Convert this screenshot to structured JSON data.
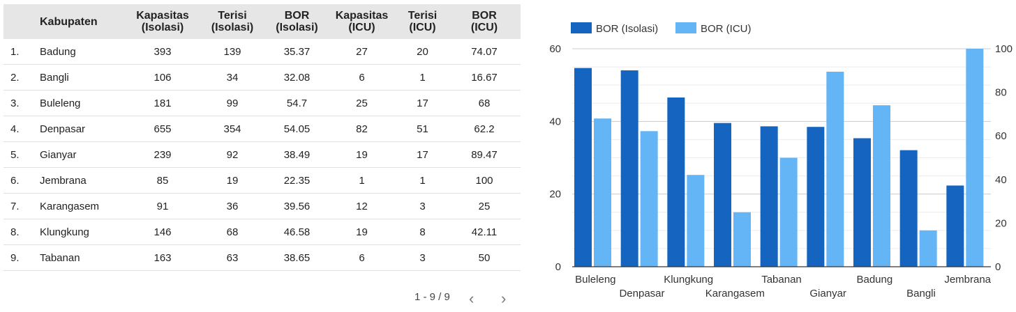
{
  "table": {
    "headers": {
      "idx": "",
      "kabupaten": "Kabupaten",
      "kap_iso": [
        "Kapasitas",
        "(Isolasi)"
      ],
      "ter_iso": [
        "Terisi",
        "(Isolasi)"
      ],
      "bor_iso": [
        "BOR",
        "(Isolasi)"
      ],
      "kap_icu": [
        "Kapasitas",
        "(ICU)"
      ],
      "ter_icu": [
        "Terisi",
        "(ICU)"
      ],
      "bor_icu": [
        "BOR",
        "(ICU)"
      ]
    },
    "rows": [
      {
        "idx": "1.",
        "kab": "Badung",
        "kap_iso": "393",
        "ter_iso": "139",
        "bor_iso": "35.37",
        "kap_icu": "27",
        "ter_icu": "20",
        "bor_icu": "74.07"
      },
      {
        "idx": "2.",
        "kab": "Bangli",
        "kap_iso": "106",
        "ter_iso": "34",
        "bor_iso": "32.08",
        "kap_icu": "6",
        "ter_icu": "1",
        "bor_icu": "16.67"
      },
      {
        "idx": "3.",
        "kab": "Buleleng",
        "kap_iso": "181",
        "ter_iso": "99",
        "bor_iso": "54.7",
        "kap_icu": "25",
        "ter_icu": "17",
        "bor_icu": "68"
      },
      {
        "idx": "4.",
        "kab": "Denpasar",
        "kap_iso": "655",
        "ter_iso": "354",
        "bor_iso": "54.05",
        "kap_icu": "82",
        "ter_icu": "51",
        "bor_icu": "62.2"
      },
      {
        "idx": "5.",
        "kab": "Gianyar",
        "kap_iso": "239",
        "ter_iso": "92",
        "bor_iso": "38.49",
        "kap_icu": "19",
        "ter_icu": "17",
        "bor_icu": "89.47"
      },
      {
        "idx": "6.",
        "kab": "Jembrana",
        "kap_iso": "85",
        "ter_iso": "19",
        "bor_iso": "22.35",
        "kap_icu": "1",
        "ter_icu": "1",
        "bor_icu": "100"
      },
      {
        "idx": "7.",
        "kab": "Karangasem",
        "kap_iso": "91",
        "ter_iso": "36",
        "bor_iso": "39.56",
        "kap_icu": "12",
        "ter_icu": "3",
        "bor_icu": "25"
      },
      {
        "idx": "8.",
        "kab": "Klungkung",
        "kap_iso": "146",
        "ter_iso": "68",
        "bor_iso": "46.58",
        "kap_icu": "19",
        "ter_icu": "8",
        "bor_icu": "42.11"
      },
      {
        "idx": "9.",
        "kab": "Tabanan",
        "kap_iso": "163",
        "ter_iso": "63",
        "bor_iso": "38.65",
        "kap_icu": "6",
        "ter_icu": "3",
        "bor_icu": "50"
      }
    ]
  },
  "pagination": {
    "label": "1 - 9 / 9",
    "prev": "‹",
    "next": "›"
  },
  "chart_data": {
    "type": "bar",
    "categories": [
      "Buleleng",
      "Denpasar",
      "Klungkung",
      "Karangasem",
      "Tabanan",
      "Gianyar",
      "Badung",
      "Bangli",
      "Jembrana"
    ],
    "series": [
      {
        "name": "BOR (Isolasi)",
        "axis": "left",
        "color": "#1565c0",
        "values": [
          54.7,
          54.05,
          46.58,
          39.56,
          38.65,
          38.49,
          35.37,
          32.08,
          22.35
        ]
      },
      {
        "name": "BOR (ICU)",
        "axis": "right",
        "color": "#64b5f6",
        "values": [
          68,
          62.2,
          42.11,
          25,
          50,
          89.47,
          74.07,
          16.67,
          100
        ]
      }
    ],
    "y_left": {
      "min": 0,
      "max": 60,
      "ticks": [
        0,
        20,
        40,
        60
      ]
    },
    "y_right": {
      "min": 0,
      "max": 100,
      "ticks": [
        0,
        20,
        40,
        60,
        80,
        100
      ]
    },
    "grid": true,
    "legend_position": "top-left"
  }
}
